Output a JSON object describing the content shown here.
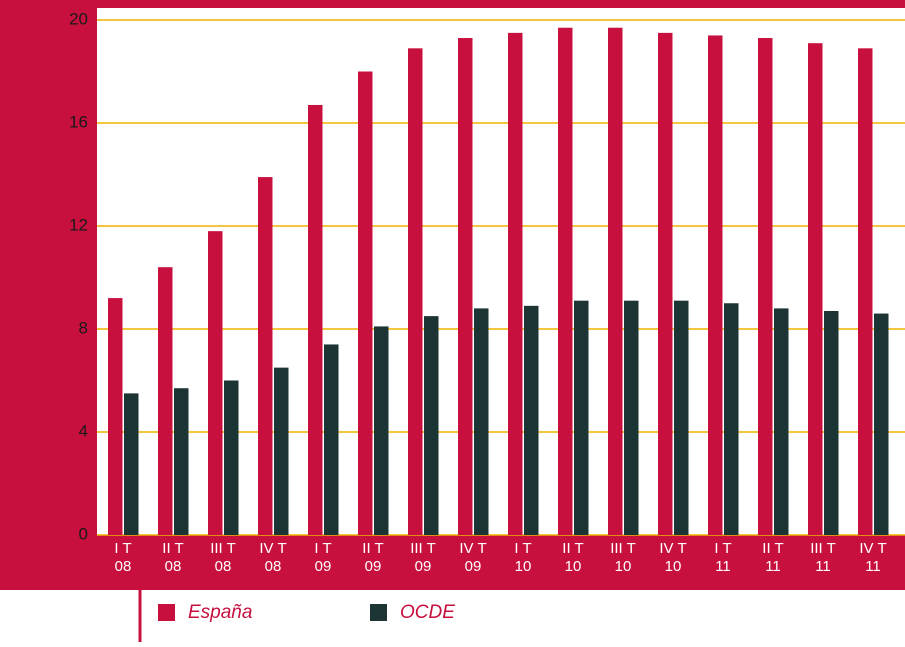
{
  "chart_data": {
    "type": "bar",
    "categories": [
      [
        "I T",
        "08"
      ],
      [
        "II T",
        "08"
      ],
      [
        "III T",
        "08"
      ],
      [
        "IV T",
        "08"
      ],
      [
        "I T",
        "09"
      ],
      [
        "II T",
        "09"
      ],
      [
        "III T",
        "09"
      ],
      [
        "IV T",
        "09"
      ],
      [
        "I T",
        "10"
      ],
      [
        "II T",
        "10"
      ],
      [
        "III T",
        "10"
      ],
      [
        "IV T",
        "10"
      ],
      [
        "I T",
        "11"
      ],
      [
        "II T",
        "11"
      ],
      [
        "III T",
        "11"
      ],
      [
        "IV T",
        "11"
      ]
    ],
    "series": [
      {
        "name": "España",
        "color": "#c8103e",
        "values": [
          9.2,
          10.4,
          11.8,
          13.9,
          16.7,
          18.0,
          18.9,
          19.3,
          19.5,
          19.7,
          19.7,
          19.5,
          19.4,
          19.3,
          19.1,
          18.9
        ]
      },
      {
        "name": "OCDE",
        "color": "#1c3434",
        "values": [
          5.5,
          5.7,
          6.0,
          6.5,
          7.4,
          8.1,
          8.5,
          8.8,
          8.9,
          9.1,
          9.1,
          9.1,
          9.0,
          8.8,
          8.7,
          8.6
        ]
      }
    ],
    "ylim": [
      0,
      20
    ],
    "yticks": [
      0,
      4,
      8,
      12,
      16,
      20
    ],
    "grid": true,
    "grid_color": "#f0b400"
  }
}
